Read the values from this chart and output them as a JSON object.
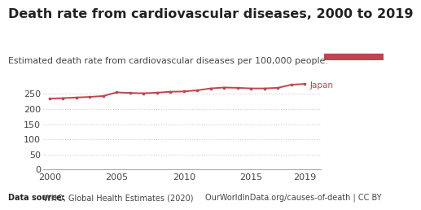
{
  "title": "Death rate from cardiovascular diseases, 2000 to 2019",
  "subtitle": "Estimated death rate from cardiovascular diseases per 100,000 people.",
  "footer_bold": "Data source:",
  "footer_left_rest": " WHO, Global Health Estimates (2020)",
  "footer_right": "OurWorldInData.org/causes-of-death | CC BY",
  "line_color": "#c0444f",
  "line_label": "Japan",
  "years": [
    2000,
    2001,
    2002,
    2003,
    2004,
    2005,
    2006,
    2007,
    2008,
    2009,
    2010,
    2011,
    2012,
    2013,
    2014,
    2015,
    2016,
    2017,
    2018,
    2019
  ],
  "values": [
    234,
    236,
    238,
    240,
    243,
    255,
    253,
    252,
    254,
    257,
    258,
    262,
    268,
    271,
    270,
    268,
    268,
    270,
    280,
    283
  ],
  "ylim": [
    0,
    300
  ],
  "yticks": [
    0,
    50,
    100,
    150,
    200,
    250
  ],
  "xticks": [
    2000,
    2005,
    2010,
    2015,
    2019
  ],
  "grid_color": "#cccccc",
  "bg_color": "#ffffff",
  "logo_bg": "#1a3a5c",
  "logo_red": "#c0444f",
  "title_fontsize": 11.5,
  "subtitle_fontsize": 7.8,
  "footer_fontsize": 7.0,
  "tick_fontsize": 8.0,
  "label_color": "#c0444f",
  "text_dark": "#222222",
  "text_mid": "#444444"
}
